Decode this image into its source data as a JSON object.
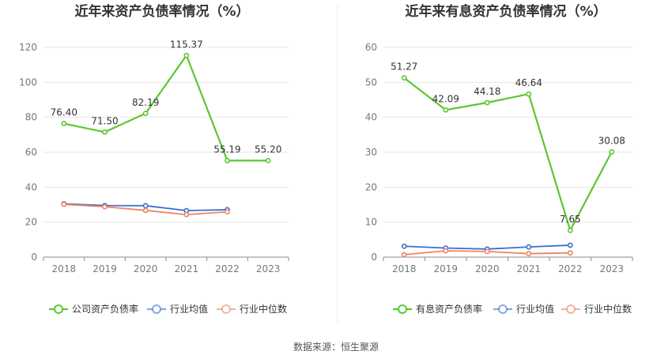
{
  "source": "数据来源：恒生聚源",
  "legend_labels": {
    "industry_avg": "行业均值",
    "industry_median": "行业中位数"
  },
  "colors": {
    "main": "#5cc72e",
    "avg": "#3a6fd1",
    "median": "#f0845f",
    "grid": "#e6e6e6",
    "axis": "#8a8a8a"
  },
  "chart_data": [
    {
      "type": "line",
      "title": "近年来资产负债率情况（%）",
      "categories": [
        "2018",
        "2019",
        "2020",
        "2021",
        "2022",
        "2023"
      ],
      "ylim": [
        0,
        120
      ],
      "yticks": [
        0,
        20,
        40,
        60,
        80,
        100,
        120
      ],
      "grid": true,
      "legend_position": "bottom",
      "series": [
        {
          "name": "公司资产负债率",
          "key": "main",
          "values": [
            76.4,
            71.5,
            82.19,
            115.37,
            55.19,
            55.2
          ],
          "labels": [
            "76.40",
            "71.50",
            "82.19",
            "115.37",
            "55.19",
            "55.20"
          ]
        },
        {
          "name": "行业均值",
          "key": "avg",
          "values": [
            30.5,
            29.5,
            29.4,
            26.6,
            27.1,
            null
          ]
        },
        {
          "name": "行业中位数",
          "key": "median",
          "values": [
            30.2,
            28.8,
            26.7,
            24.3,
            25.9,
            null
          ]
        }
      ]
    },
    {
      "type": "line",
      "title": "近年来有息资产负债率情况（%）",
      "categories": [
        "2018",
        "2019",
        "2020",
        "2021",
        "2022",
        "2023"
      ],
      "ylim": [
        0,
        60
      ],
      "yticks": [
        0,
        10,
        20,
        30,
        40,
        50,
        60
      ],
      "grid": true,
      "legend_position": "bottom",
      "series": [
        {
          "name": "有息资产负债率",
          "key": "main",
          "values": [
            51.27,
            42.09,
            44.18,
            46.64,
            7.65,
            30.08
          ],
          "labels": [
            "51.27",
            "42.09",
            "44.18",
            "46.64",
            "7.65",
            "30.08"
          ]
        },
        {
          "name": "行业均值",
          "key": "avg",
          "values": [
            3.1,
            2.6,
            2.3,
            2.9,
            3.4,
            null
          ]
        },
        {
          "name": "行业中位数",
          "key": "median",
          "values": [
            0.7,
            1.8,
            1.6,
            1.0,
            1.2,
            null
          ]
        }
      ]
    }
  ]
}
